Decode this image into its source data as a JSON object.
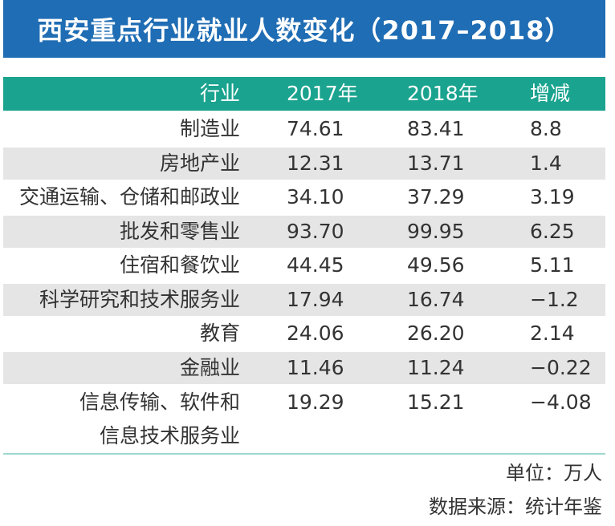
{
  "header": {
    "title": "西安重点行业就业人数变化（2017–2018）"
  },
  "table": {
    "columns": [
      "行业",
      "2017年",
      "2018年",
      "增减"
    ],
    "rows": [
      [
        "制造业",
        "74.61",
        "83.41",
        "8.8"
      ],
      [
        "房地产业",
        "12.31",
        "13.71",
        "1.4"
      ],
      [
        "交通运输、仓储和邮政业",
        "34.10",
        "37.29",
        "3.19"
      ],
      [
        "批发和零售业",
        "93.70",
        "99.95",
        "6.25"
      ],
      [
        "住宿和餐饮业",
        "44.45",
        "49.56",
        "5.11"
      ],
      [
        "科学研究和技术服务业",
        "17.94",
        "16.74",
        "−1.2"
      ],
      [
        "教育",
        "24.06",
        "26.20",
        "2.14"
      ],
      [
        "金融业",
        "11.46",
        "11.24",
        "−0.22"
      ],
      [
        "信息传输、软件和\n信息技术服务业",
        "19.29",
        "15.21",
        "−4.08"
      ]
    ]
  },
  "footer": {
    "unit": "单位：万人",
    "source": "数据来源：统计年鉴"
  }
}
